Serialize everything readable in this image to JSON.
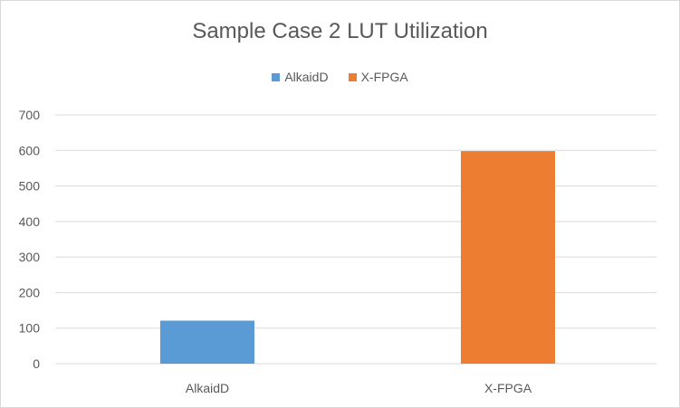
{
  "chart_data": {
    "type": "bar",
    "title": "Sample Case 2 LUT Utilization",
    "categories": [
      "AlkaidD",
      "X-FPGA"
    ],
    "series": [
      {
        "name": "AlkaidD",
        "color": "#5b9bd5",
        "values": [
          121,
          null
        ]
      },
      {
        "name": "X-FPGA",
        "color": "#ed7d31",
        "values": [
          null,
          598
        ]
      }
    ],
    "ylim": [
      0,
      700
    ],
    "yticks": [
      "0",
      "100",
      "200",
      "300",
      "400",
      "500",
      "600",
      "700"
    ],
    "grid": true,
    "legend": "top",
    "xlabel": "",
    "ylabel": ""
  }
}
